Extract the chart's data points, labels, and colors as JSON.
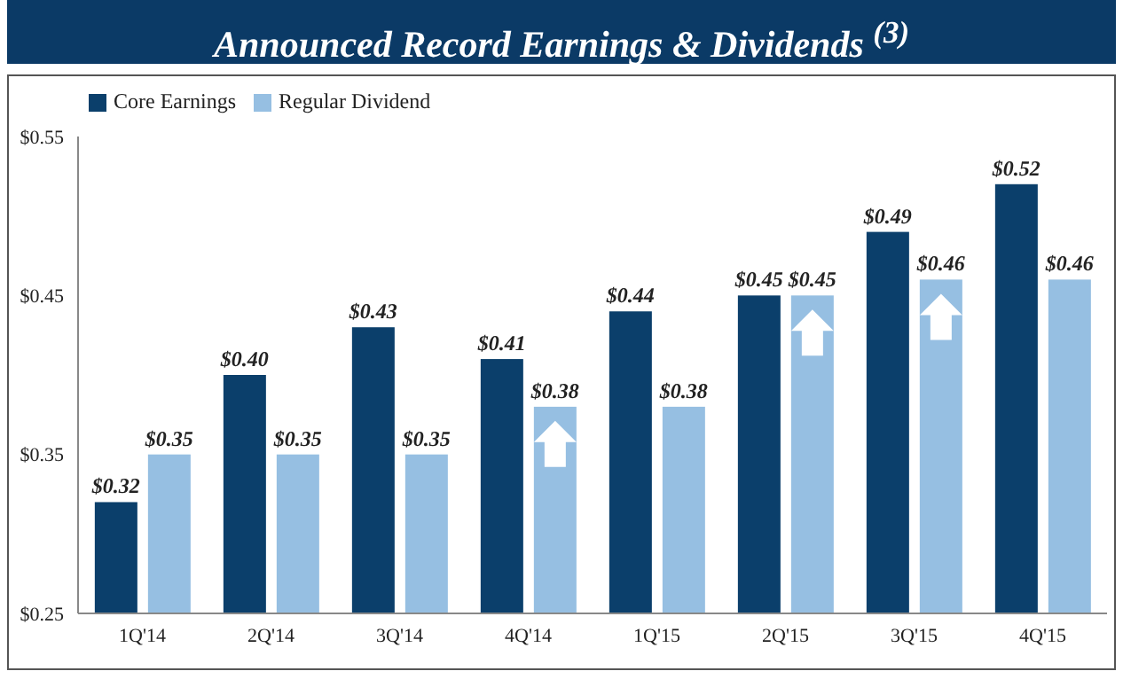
{
  "chart_data": {
    "type": "bar",
    "title": "Announced Record Earnings & Dividends $^{(3)}$",
    "categories": [
      "1Q'14",
      "2Q'14",
      "3Q'14",
      "4Q'14",
      "1Q'15",
      "2Q'15",
      "3Q'15",
      "4Q'15"
    ],
    "series": [
      {
        "name": "Core Earnings",
        "color": "#0b3f6b",
        "values": [
          0.32,
          0.4,
          0.43,
          0.41,
          0.44,
          0.45,
          0.49,
          0.52
        ],
        "value_labels": [
          "$0.32",
          "$0.40",
          "$0.43",
          "$0.41",
          "$0.44",
          "$0.45",
          "$0.49",
          "$0.52"
        ]
      },
      {
        "name": "Regular Dividend",
        "color": "#96bfe2",
        "values": [
          0.35,
          0.35,
          0.35,
          0.38,
          0.38,
          0.45,
          0.46,
          0.46
        ],
        "value_labels": [
          "$0.35",
          "$0.35",
          "$0.35",
          "$0.38",
          "$0.38",
          "$0.45",
          "$0.46",
          "$0.46"
        ]
      }
    ],
    "ylim": [
      0.25,
      0.55
    ],
    "yticks": [
      {
        "value": 0.25,
        "label": "$0.25"
      },
      {
        "value": 0.35,
        "label": "$0.35"
      },
      {
        "value": 0.45,
        "label": "$0.45"
      },
      {
        "value": 0.55,
        "label": "$0.55"
      }
    ],
    "grid": false,
    "legend": "top left"
  }
}
